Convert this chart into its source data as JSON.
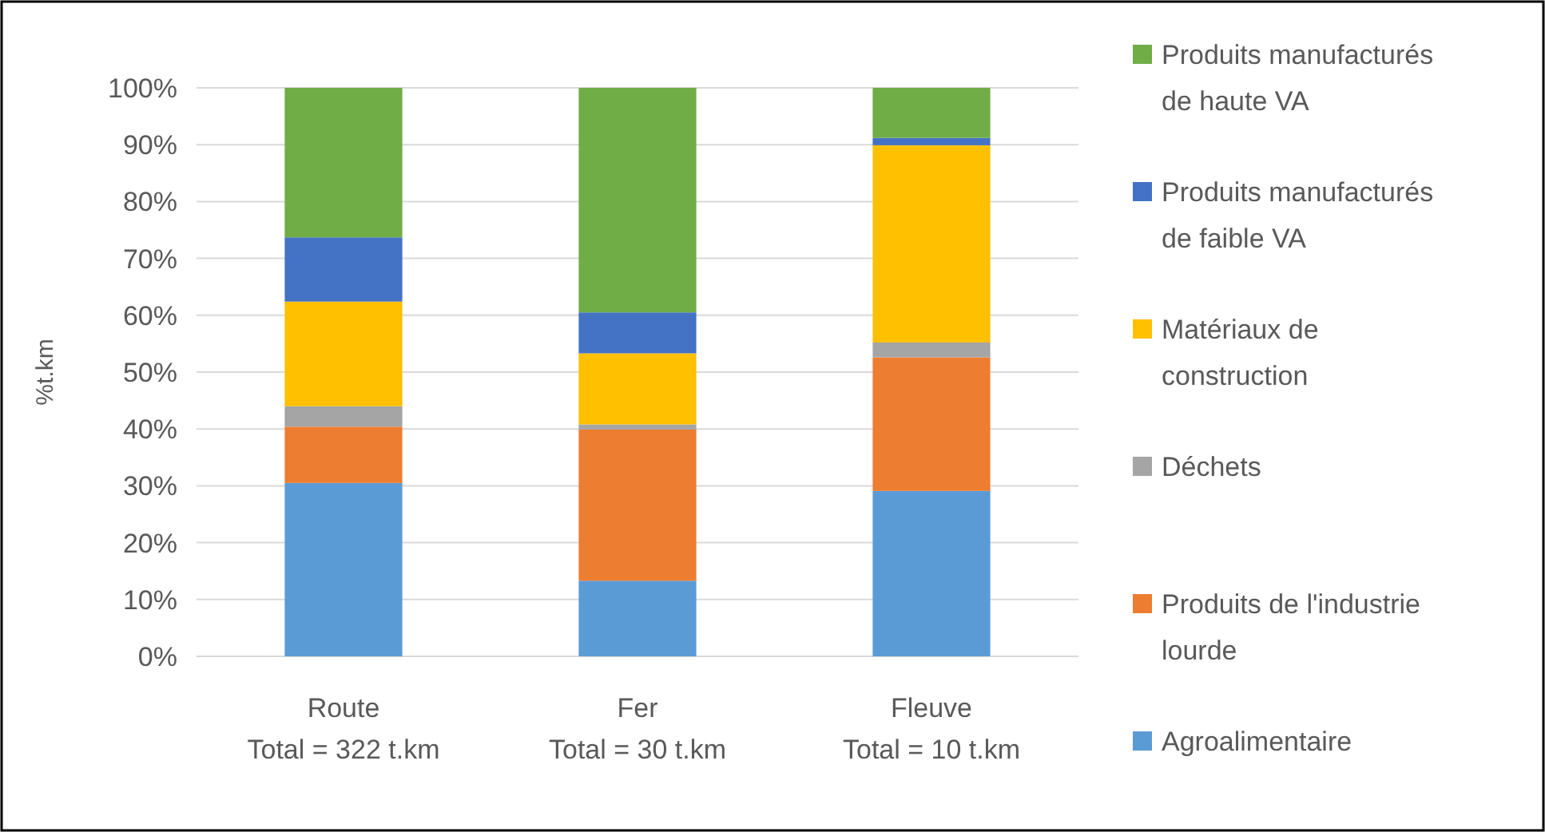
{
  "chart_data": {
    "type": "bar",
    "stacked": true,
    "ylabel": "%t.km",
    "categories": [
      "Route\nTotal = 322 t.km",
      "Fer\nTotal = 30 t.km",
      "Fleuve\nTotal = 10 t.km"
    ],
    "series": [
      {
        "name": "Agroalimentaire",
        "color": "#5b9bd5",
        "values": [
          30.5,
          13.3,
          29.1
        ]
      },
      {
        "name": "Produits de l'industrie lourde",
        "color": "#ed7d31",
        "values": [
          9.9,
          26.6,
          23.5
        ]
      },
      {
        "name": "Déchets",
        "color": "#a5a5a5",
        "values": [
          3.6,
          0.9,
          2.6
        ]
      },
      {
        "name": "Matériaux de construction",
        "color": "#ffc000",
        "values": [
          18.4,
          12.5,
          34.7
        ]
      },
      {
        "name": "Produits manufacturés de faible VA",
        "color": "#4472c4",
        "values": [
          11.3,
          7.2,
          1.3
        ]
      },
      {
        "name": "Produits manufacturés de haute VA",
        "color": "#70ad47",
        "values": [
          26.3,
          39.5,
          8.8
        ]
      }
    ],
    "ylim": [
      0,
      100
    ],
    "yticks": [
      {
        "value": 0,
        "label": "0%"
      },
      {
        "value": 10,
        "label": "10%"
      },
      {
        "value": 20,
        "label": "20%"
      },
      {
        "value": 30,
        "label": "30%"
      },
      {
        "value": 40,
        "label": "40%"
      },
      {
        "value": 50,
        "label": "50%"
      },
      {
        "value": 60,
        "label": "60%"
      },
      {
        "value": 70,
        "label": "70%"
      },
      {
        "value": 80,
        "label": "80%"
      },
      {
        "value": 90,
        "label": "90%"
      },
      {
        "value": 100,
        "label": "100%"
      }
    ],
    "grid": "y",
    "legend": "right"
  }
}
